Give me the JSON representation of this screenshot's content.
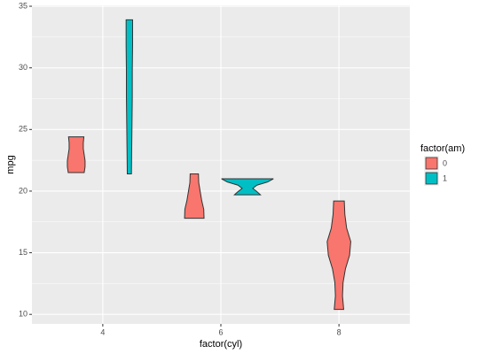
{
  "chart_data": {
    "type": "violin",
    "x_label": "factor(cyl)",
    "y_label": "mpg",
    "legend_title": "factor(am)",
    "categories": [
      "4",
      "6",
      "8"
    ],
    "ylim": [
      9.225,
      35.075
    ],
    "yticks": [
      10,
      15,
      20,
      25,
      30,
      35
    ],
    "grid": true,
    "legend": "right",
    "series": [
      {
        "name": "0",
        "color": "#F8766D",
        "violins": [
          {
            "min": 21.5,
            "max": 24.4,
            "density": [
              0.135,
              0.15,
              0.15,
              0.135,
              0.12,
              0.12,
              0.13
            ]
          },
          {
            "min": 17.8,
            "max": 21.4,
            "density": [
              0.165,
              0.16,
              0.125,
              0.1,
              0.075,
              0.07
            ]
          },
          {
            "min": 10.4,
            "max": 19.2,
            "density": [
              0.08,
              0.06,
              0.07,
              0.11,
              0.18,
              0.2,
              0.13,
              0.1,
              0.09
            ]
          }
        ]
      },
      {
        "name": "1",
        "color": "#00BFC4",
        "violins": [
          {
            "min": 21.4,
            "max": 33.9,
            "density": [
              0.035,
              0.04,
              0.045,
              0.05,
              0.05,
              0.055,
              0.055
            ]
          },
          {
            "min": 19.7,
            "max": 21.0,
            "density": [
              0.22,
              0.16,
              0.09,
              0.16,
              0.34,
              0.44
            ]
          },
          null
        ]
      }
    ]
  }
}
